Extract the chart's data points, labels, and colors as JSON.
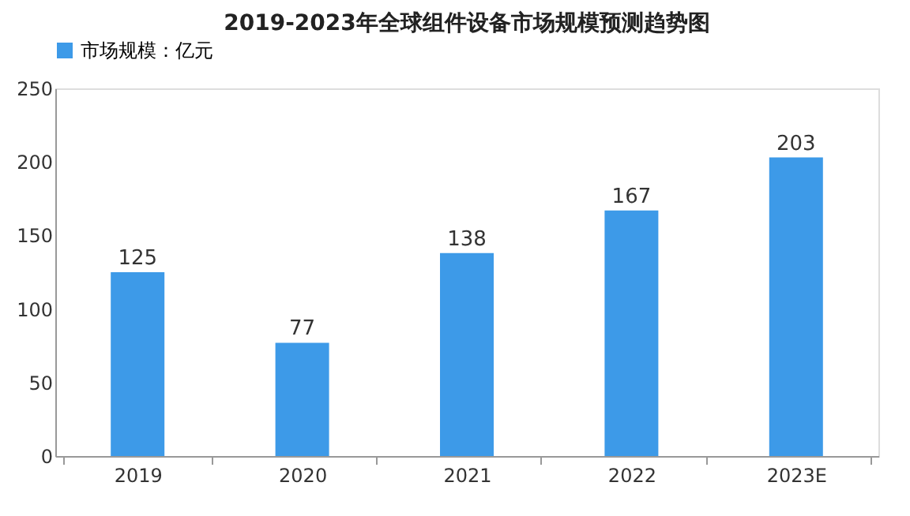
{
  "chart_data": {
    "type": "bar",
    "title": "2019-2023年全球组件设备市场规模预测趋势图",
    "categories": [
      "2019",
      "2020",
      "2021",
      "2022",
      "2023E"
    ],
    "series": [
      {
        "name": "市场规模：亿元",
        "color": "#3d9ae8",
        "values": [
          125,
          77,
          138,
          167,
          203
        ]
      }
    ],
    "ylim": [
      0,
      250
    ],
    "yticks": [
      0,
      50,
      100,
      150,
      200,
      250
    ],
    "data_labels": true,
    "grid": false,
    "legend": "top"
  }
}
